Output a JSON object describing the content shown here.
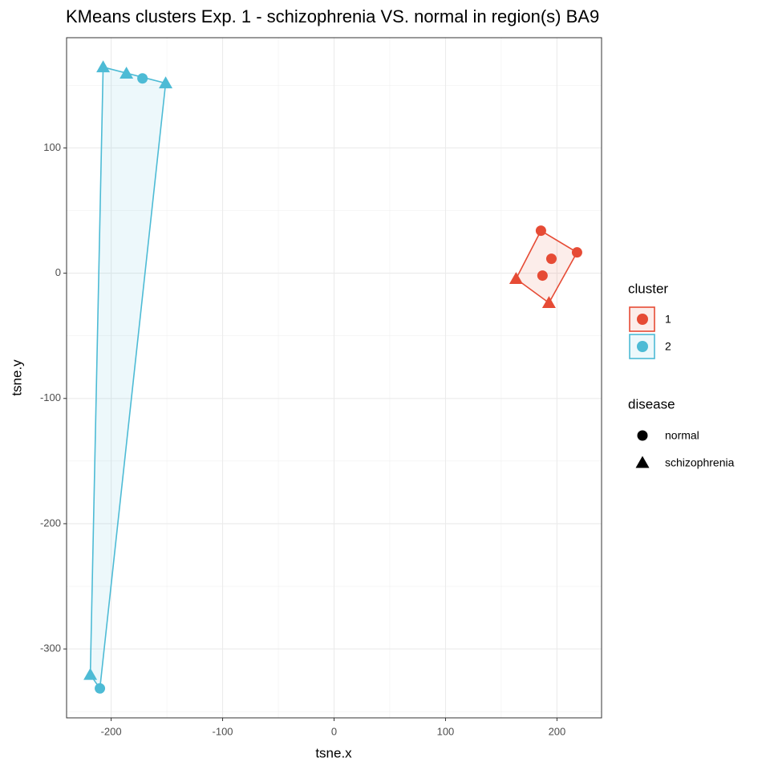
{
  "chart_data": {
    "type": "scatter",
    "title": "KMeans clusters Exp. 1 - schizophrenia VS. normal in region(s) BA9",
    "x_label": "tsne.x",
    "y_label": "tsne.y",
    "xlim": [
      -240,
      240
    ],
    "ylim": [
      -355,
      188
    ],
    "xticks": [
      -200,
      -100,
      0,
      100,
      200
    ],
    "yticks": [
      -300,
      -200,
      -100,
      0,
      100
    ],
    "grid": true,
    "hulls": true,
    "legend_title": "cluster",
    "shape_legend": {
      "title": "disease",
      "entries": [
        "normal",
        "schizophrenia"
      ]
    },
    "series": [
      {
        "name": "1",
        "color": "#E64B35",
        "x": [
          185.6,
          218,
          195,
          187,
          163.3,
          192.8
        ],
        "y": [
          33.9,
          16.6,
          11.5,
          -1.9,
          -4.5,
          -23.7
        ],
        "disease": [
          "normal",
          "normal",
          "normal",
          "normal",
          "schizophrenia",
          "schizophrenia"
        ]
      },
      {
        "name": "2",
        "color": "#4DBBD5",
        "x": [
          -207.2,
          -186.3,
          -171.9,
          -151.1,
          -218.7,
          -210.1
        ],
        "y": [
          164.5,
          159.4,
          155.5,
          151.7,
          -320.6,
          -331.5
        ],
        "disease": [
          "schizophrenia",
          "schizophrenia",
          "normal",
          "schizophrenia",
          "schizophrenia",
          "normal"
        ]
      }
    ]
  }
}
